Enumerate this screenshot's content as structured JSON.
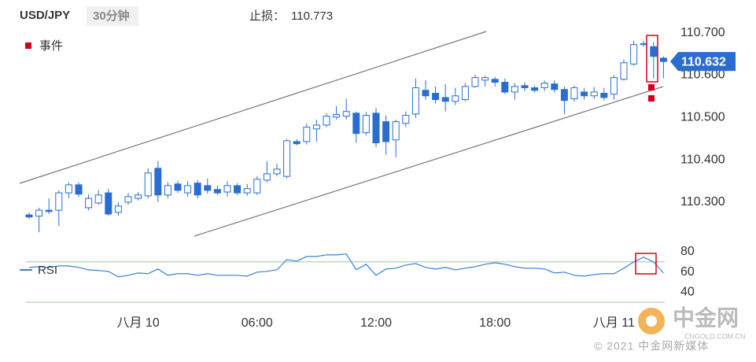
{
  "header": {
    "symbol": "USD/JPY",
    "interval": "30分钟",
    "stop_loss_label": "止损：",
    "stop_loss": 110.773
  },
  "legend": {
    "event": "事件"
  },
  "watermark": {
    "brand": "中金网",
    "site": "CNGOLD.COM.CN",
    "footer": "© 2021 中金网新媒体"
  },
  "chart_data": [
    {
      "type": "candlestick",
      "color": "#2a6dd1",
      "open": [
        110.27,
        110.267,
        110.281,
        110.281,
        110.322,
        110.341,
        110.287,
        110.298,
        110.322,
        110.276,
        110.3,
        110.309,
        110.315,
        110.38,
        110.317,
        110.343,
        110.322,
        110.345,
        110.339,
        110.33,
        110.324,
        110.339,
        110.322,
        110.322,
        110.352,
        110.367,
        110.361,
        110.443,
        110.443,
        110.473,
        110.482,
        110.501,
        110.503,
        110.51,
        110.464,
        110.51,
        110.49,
        110.447,
        110.486,
        110.508,
        110.564,
        110.557,
        110.547,
        110.538,
        110.542,
        110.573,
        110.588,
        110.59,
        110.583,
        110.56,
        110.575,
        110.57,
        110.57,
        110.579,
        110.566,
        110.544,
        110.56,
        110.551,
        110.557,
        110.555,
        110.59,
        110.626,
        110.672,
        110.667,
        110.64
      ],
      "high": [
        110.276,
        110.287,
        110.309,
        110.328,
        110.347,
        110.347,
        110.319,
        110.328,
        110.332,
        110.3,
        110.322,
        110.324,
        110.38,
        110.397,
        110.347,
        110.35,
        110.35,
        110.352,
        110.356,
        110.339,
        110.35,
        110.345,
        110.343,
        110.361,
        110.397,
        110.391,
        110.449,
        110.449,
        110.486,
        110.495,
        110.51,
        110.527,
        110.544,
        110.514,
        110.514,
        110.523,
        110.505,
        110.495,
        110.514,
        110.592,
        110.588,
        110.573,
        110.579,
        110.57,
        110.581,
        110.601,
        110.598,
        110.596,
        110.592,
        110.581,
        110.583,
        110.575,
        110.587,
        110.588,
        110.573,
        110.575,
        110.57,
        110.572,
        110.57,
        110.6,
        110.637,
        110.681,
        110.681,
        110.678,
        110.644
      ],
      "low": [
        110.261,
        110.229,
        110.272,
        110.244,
        110.309,
        110.313,
        110.281,
        110.294,
        110.268,
        110.268,
        110.294,
        110.304,
        110.309,
        110.3,
        110.309,
        110.322,
        110.313,
        110.309,
        110.32,
        110.317,
        110.313,
        110.317,
        110.315,
        110.317,
        110.347,
        110.361,
        110.356,
        110.434,
        110.436,
        110.443,
        110.477,
        110.495,
        110.495,
        110.44,
        110.458,
        110.43,
        110.412,
        110.406,
        110.477,
        110.499,
        110.542,
        110.533,
        110.514,
        110.529,
        110.538,
        110.57,
        110.573,
        110.573,
        110.555,
        110.542,
        110.562,
        110.559,
        110.562,
        110.559,
        110.508,
        110.538,
        110.542,
        110.544,
        110.54,
        110.542,
        110.587,
        110.622,
        110.667,
        110.592,
        110.592
      ],
      "close": [
        110.265,
        110.281,
        110.278,
        110.322,
        110.341,
        110.319,
        110.309,
        110.317,
        110.272,
        110.291,
        110.313,
        110.317,
        110.369,
        110.317,
        110.339,
        110.328,
        110.339,
        110.317,
        110.328,
        110.322,
        110.339,
        110.322,
        110.332,
        110.354,
        110.367,
        110.378,
        110.445,
        110.438,
        110.477,
        110.482,
        110.503,
        110.507,
        110.514,
        110.462,
        110.505,
        110.44,
        110.443,
        110.49,
        110.505,
        110.57,
        110.551,
        110.542,
        110.538,
        110.551,
        110.573,
        110.594,
        110.594,
        110.583,
        110.56,
        110.573,
        110.57,
        110.564,
        110.581,
        110.566,
        110.54,
        110.57,
        110.551,
        110.56,
        110.547,
        110.594,
        110.629,
        110.672,
        110.674,
        110.644,
        110.632
      ],
      "last_price": 110.632,
      "ylim": [
        110.22,
        110.74
      ],
      "yticks": [
        {
          "value": 110.3,
          "label": "110.300"
        },
        {
          "value": 110.4,
          "label": "110.400"
        },
        {
          "value": 110.5,
          "label": "110.500"
        },
        {
          "value": 110.6,
          "label": "110.600"
        },
        {
          "value": 110.7,
          "label": "110.700"
        }
      ],
      "grid": false
    },
    {
      "type": "line",
      "categories": [
        null,
        null,
        null,
        null,
        null,
        null,
        null,
        null,
        null,
        null,
        null,
        "八月 10",
        null,
        null,
        null,
        null,
        null,
        null,
        null,
        null,
        null,
        null,
        null,
        "06:00",
        null,
        null,
        null,
        null,
        null,
        null,
        null,
        null,
        null,
        null,
        null,
        "12:00",
        null,
        null,
        null,
        null,
        null,
        null,
        null,
        null,
        null,
        null,
        null,
        "18:00",
        null,
        null,
        null,
        null,
        null,
        null,
        null,
        null,
        null,
        null,
        null,
        "八月 11",
        null,
        null,
        null,
        null,
        null
      ],
      "series": [
        {
          "name": "RSI",
          "color": "#3b7fd4",
          "values": [
            64.5,
            65.2,
            64.5,
            66.0,
            66.0,
            64.5,
            62.1,
            61.4,
            60.6,
            55.1,
            56.7,
            59.0,
            58.3,
            62.9,
            56.7,
            58.3,
            58.3,
            56.7,
            58.3,
            56.7,
            56.7,
            56.7,
            55.9,
            59.8,
            60.6,
            62.1,
            72.2,
            70.7,
            75.3,
            75.3,
            76.9,
            76.9,
            77.7,
            62.1,
            67.6,
            56.7,
            62.9,
            63.7,
            66.8,
            68.3,
            64.5,
            62.9,
            64.5,
            62.1,
            63.7,
            65.2,
            67.6,
            69.1,
            67.6,
            65.2,
            63.7,
            63.7,
            62.9,
            59.0,
            59.8,
            56.7,
            55.9,
            57.5,
            58.3,
            58.3,
            63.7,
            69.9,
            74.6,
            69.9,
            59.0
          ]
        }
      ],
      "hlines": [
        70,
        30
      ],
      "hline_color": "#9cc89c",
      "ylim": [
        20,
        90
      ],
      "yticks": [
        40,
        60,
        80
      ],
      "grid": false
    }
  ]
}
